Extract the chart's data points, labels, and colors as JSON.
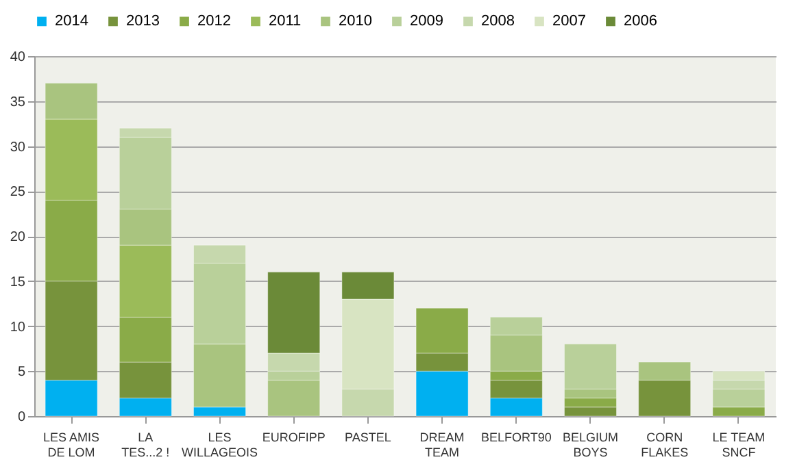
{
  "chart_data": {
    "type": "bar",
    "stacked": true,
    "categories": [
      "LES AMIS DE LOM",
      "LA TES...2 !",
      "LES WILLAGEOIS",
      "EUROFIPP",
      "PASTEL",
      "DREAM TEAM",
      "BELFORT90",
      "BELGIUM BOYS",
      "CORN FLAKES",
      "LE TEAM SNCF"
    ],
    "series": [
      {
        "name": "2014",
        "color": "#00b0f0",
        "values": [
          4,
          2,
          1,
          null,
          null,
          5,
          2,
          null,
          null,
          null
        ]
      },
      {
        "name": "2013",
        "color": "#77933c",
        "values": [
          11,
          4,
          null,
          null,
          null,
          2,
          2,
          1,
          4,
          null
        ]
      },
      {
        "name": "2012",
        "color": "#8aab48",
        "values": [
          9,
          5,
          null,
          null,
          null,
          5,
          1,
          1,
          null,
          1
        ]
      },
      {
        "name": "2011",
        "color": "#9bbb59",
        "values": [
          9,
          8,
          null,
          null,
          null,
          null,
          null,
          null,
          null,
          null
        ]
      },
      {
        "name": "2010",
        "color": "#a9c47f",
        "values": [
          4,
          4,
          7,
          4,
          null,
          null,
          4,
          1,
          2,
          null
        ]
      },
      {
        "name": "2009",
        "color": "#b9d09a",
        "values": [
          null,
          8,
          9,
          1,
          null,
          null,
          2,
          5,
          null,
          2
        ]
      },
      {
        "name": "2008",
        "color": "#c6d8ad",
        "values": [
          null,
          1,
          2,
          2,
          3,
          null,
          null,
          null,
          null,
          1
        ]
      },
      {
        "name": "2007",
        "color": "#d8e4c2",
        "values": [
          null,
          null,
          null,
          null,
          10,
          null,
          null,
          null,
          null,
          1
        ]
      },
      {
        "name": "2006",
        "color": "#6b8a38",
        "values": [
          null,
          null,
          null,
          9,
          3,
          null,
          null,
          null,
          null,
          null
        ]
      }
    ],
    "ylim": [
      0,
      40
    ],
    "yticks": [
      0,
      5,
      10,
      15,
      20,
      25,
      30,
      35,
      40
    ],
    "grid": "y",
    "legend": "top"
  }
}
